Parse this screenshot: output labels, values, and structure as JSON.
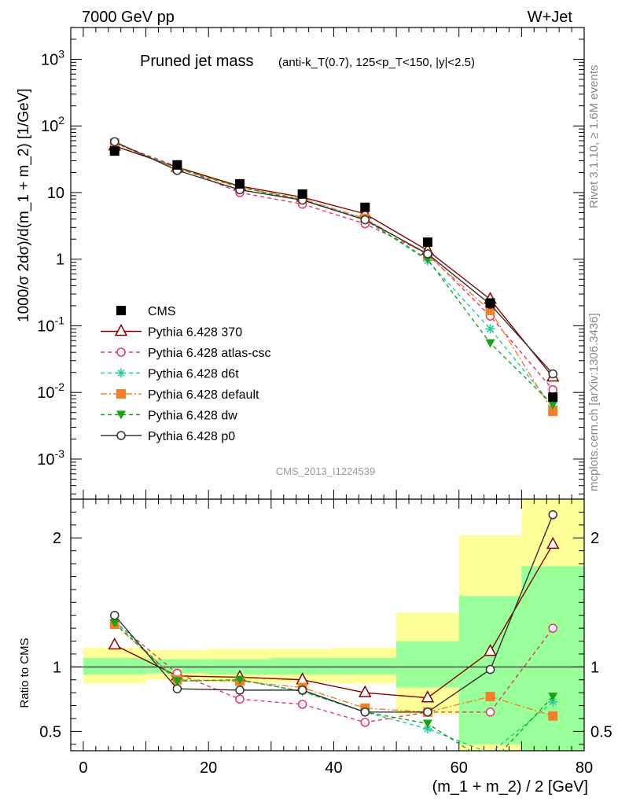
{
  "header": {
    "left": "7000 GeV pp",
    "right": "W+Jet"
  },
  "title": {
    "main": "Pruned jet mass",
    "detail": "(anti-k_T(0.7), 125<p_T<150, |y|<2.5)"
  },
  "side_labels": {
    "rivet": "Rivet 3.1.10, ≥ 1.6M events",
    "mcplots": "mcplots.cern.ch [arXiv:1306.3436]"
  },
  "watermark": "CMS_2013_I1224539",
  "chart_data": [
    {
      "type": "line",
      "panel": "main",
      "ylabel": "1000/σ 2dσ)/d(m_1 + m_2) [1/GeV]",
      "yscale": "log",
      "ylim": [
        0.00025,
        3000
      ],
      "xlim": [
        -2,
        80
      ],
      "y_ticks": [
        "10^-3",
        "10^-2",
        "10^-1",
        "1",
        "10",
        "10^2",
        "10^3"
      ],
      "legend_position": "middle-left",
      "x": [
        5,
        15,
        25,
        35,
        45,
        55,
        65,
        75
      ],
      "series": [
        {
          "name": "CMS",
          "color": "#000000",
          "marker": "filled-square",
          "values": [
            42,
            26,
            13.5,
            9.5,
            6.0,
            1.8,
            0.22,
            0.0085
          ]
        },
        {
          "name": "Pythia 6.428 370",
          "color": "#8b0000",
          "marker": "open-triangle",
          "line": "solid",
          "values": [
            50,
            24,
            12.5,
            8.5,
            4.8,
            1.35,
            0.25,
            0.017
          ]
        },
        {
          "name": "Pythia 6.428 atlas-csc",
          "color": "#e8336b",
          "marker": "open-circle",
          "line": "dashed",
          "values": [
            56,
            24.5,
            10,
            6.7,
            3.4,
            1.2,
            0.14,
            0.011
          ]
        },
        {
          "name": "Pythia 6.428 d6t",
          "color": "#1fcc99",
          "marker": "asterisk",
          "line": "dashed",
          "values": [
            57,
            23,
            12,
            7.8,
            4.0,
            0.95,
            0.09,
            0.0062
          ]
        },
        {
          "name": "Pythia 6.428 default",
          "color": "#f57f29",
          "marker": "filled-square",
          "line": "dash-dot",
          "values": [
            55,
            23,
            12,
            8.0,
            4.1,
            1.15,
            0.17,
            0.0052
          ]
        },
        {
          "name": "Pythia 6.428 dw",
          "color": "#1aa31a",
          "marker": "filled-triangle-down",
          "line": "dashed",
          "values": [
            56,
            23,
            12,
            7.7,
            3.9,
            1.0,
            0.055,
            0.0065
          ]
        },
        {
          "name": "Pythia 6.428 p0",
          "color": "#333333",
          "marker": "open-circle",
          "line": "solid",
          "values": [
            58,
            21.5,
            11,
            7.7,
            3.9,
            1.2,
            0.21,
            0.019
          ]
        }
      ]
    },
    {
      "type": "line",
      "panel": "ratio",
      "xlabel": "(m_1 + m_2) / 2 [GeV]",
      "ylabel": "Ratio to CMS",
      "ylim": [
        0.35,
        2.3
      ],
      "xlim": [
        -2,
        80
      ],
      "x_ticks": [
        0,
        20,
        40,
        60,
        80
      ],
      "y_ticks": [
        0.5,
        1,
        2
      ],
      "x": [
        5,
        15,
        25,
        35,
        45,
        55,
        65,
        75
      ],
      "bands": {
        "edges": [
          0,
          10,
          20,
          30,
          40,
          50,
          60,
          70,
          80
        ],
        "yellow_low": [
          0.87,
          0.9,
          0.88,
          0.88,
          0.87,
          0.63,
          0.3,
          0.3
        ],
        "yellow_high": [
          1.15,
          1.13,
          1.14,
          1.14,
          1.15,
          1.42,
          2.02,
          2.3
        ],
        "green_low": [
          0.94,
          0.95,
          0.94,
          0.94,
          0.94,
          0.84,
          0.4,
          0.3
        ],
        "green_high": [
          1.07,
          1.06,
          1.06,
          1.07,
          1.07,
          1.2,
          1.55,
          1.78
        ]
      },
      "series": [
        {
          "name": "Pythia 6.428 370",
          "color": "#8b0000",
          "marker": "open-triangle",
          "line": "solid",
          "values": [
            1.17,
            0.93,
            0.92,
            0.9,
            0.8,
            0.76,
            1.12,
            1.95
          ]
        },
        {
          "name": "Pythia 6.428 atlas-csc",
          "color": "#e8336b",
          "marker": "open-circle",
          "line": "dashed",
          "values": [
            1.35,
            0.95,
            0.75,
            0.71,
            0.57,
            0.65,
            0.65,
            1.3
          ]
        },
        {
          "name": "Pythia 6.428 d6t",
          "color": "#1fcc99",
          "marker": "asterisk",
          "line": "dashed",
          "values": [
            1.36,
            0.89,
            0.9,
            0.81,
            0.65,
            0.52,
            0.33,
            0.73
          ]
        },
        {
          "name": "Pythia 6.428 default",
          "color": "#f57f29",
          "marker": "filled-square",
          "line": "dash-dot",
          "values": [
            1.33,
            0.9,
            0.89,
            0.84,
            0.68,
            0.65,
            0.77,
            0.62
          ]
        },
        {
          "name": "Pythia 6.428 dw",
          "color": "#1aa31a",
          "marker": "filled-triangle-down",
          "line": "dashed",
          "values": [
            1.34,
            0.89,
            0.9,
            0.81,
            0.65,
            0.56,
            0.25,
            0.77
          ]
        },
        {
          "name": "Pythia 6.428 p0",
          "color": "#333333",
          "marker": "open-circle",
          "line": "solid",
          "values": [
            1.4,
            0.83,
            0.82,
            0.82,
            0.65,
            0.65,
            0.98,
            2.18
          ]
        }
      ]
    }
  ]
}
